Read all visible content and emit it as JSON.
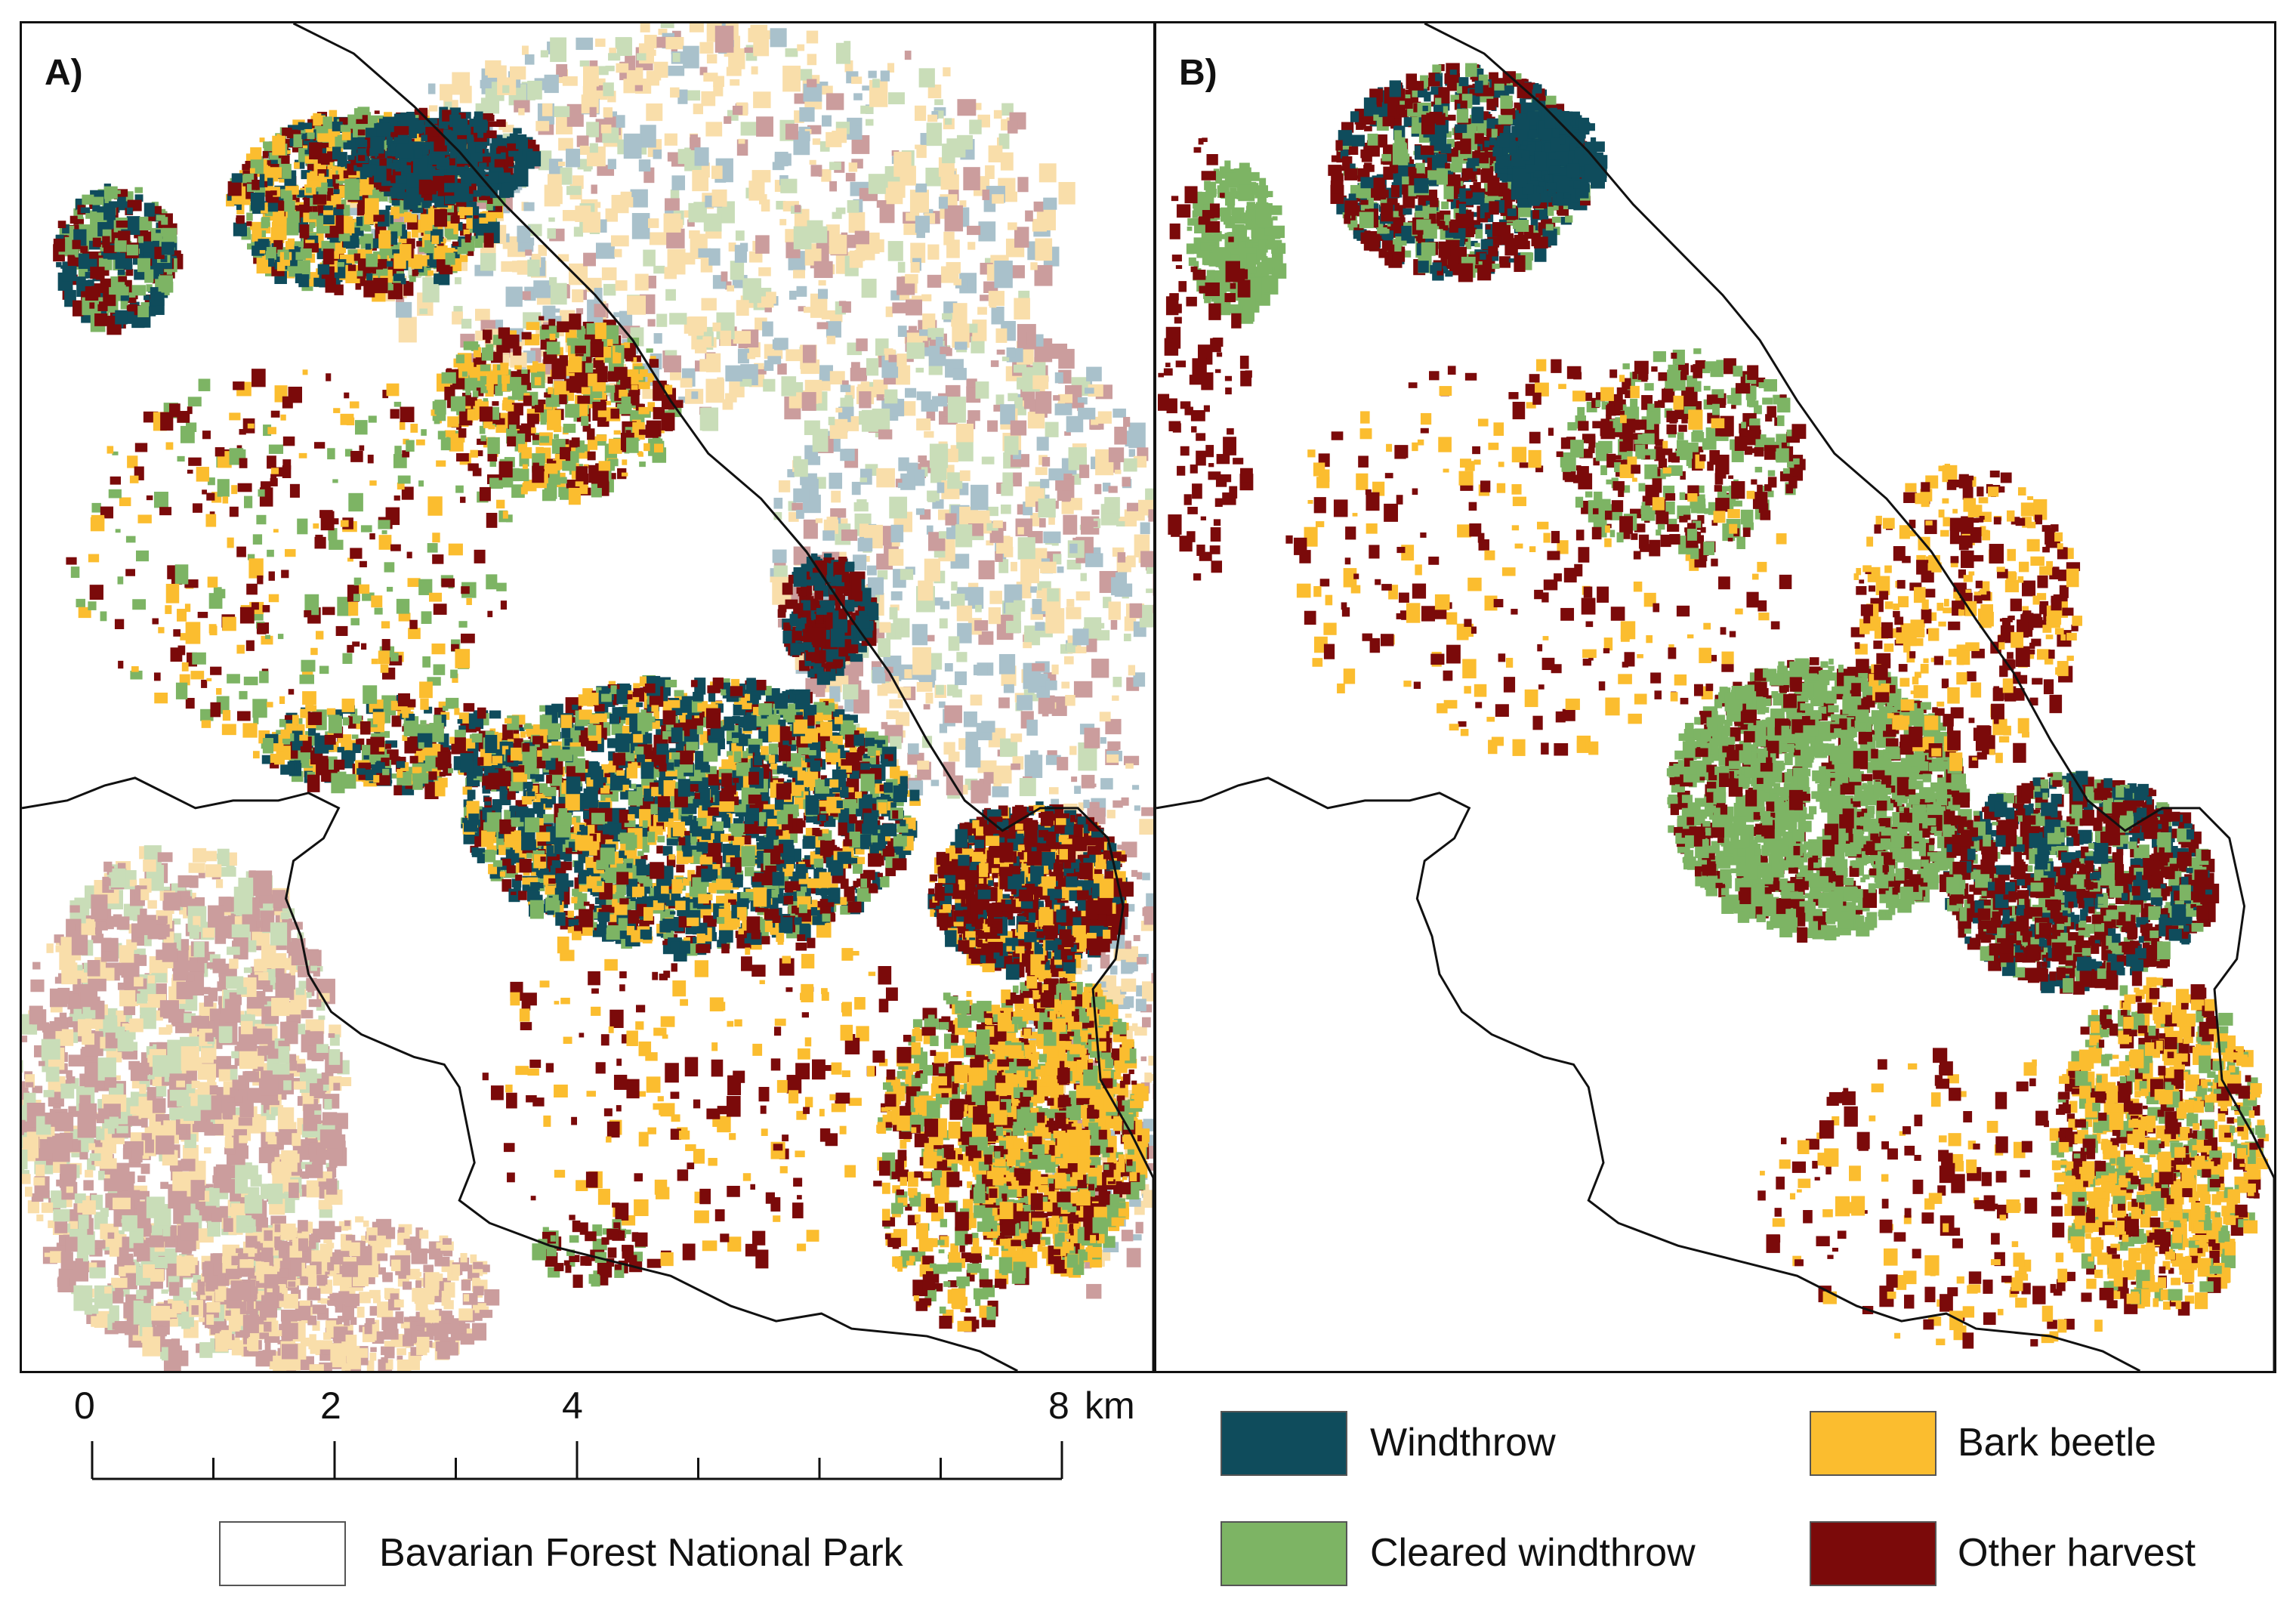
{
  "panels": [
    {
      "label": "A)"
    },
    {
      "label": "B)"
    }
  ],
  "scale_bar": {
    "ticks": [
      "0",
      "2",
      "4",
      "8"
    ],
    "unit": "km"
  },
  "legend": {
    "park": {
      "label": "Bavarian Forest National Park",
      "color": "#ffffff"
    },
    "items": [
      {
        "label": "Windthrow",
        "color": "#0f4c5c"
      },
      {
        "label": "Bark beetle",
        "color": "#fbbd2f"
      },
      {
        "label": "Cleared windthrow",
        "color": "#7db464"
      },
      {
        "label": "Other harvest",
        "color": "#7b0a0a"
      }
    ]
  },
  "background_colors": {
    "pale_beetle": "#f9deaa",
    "pale_windthrow": "#a9c1cb",
    "pale_cleared": "#c9ddb8",
    "pale_harvest": "#cb9d9d"
  }
}
